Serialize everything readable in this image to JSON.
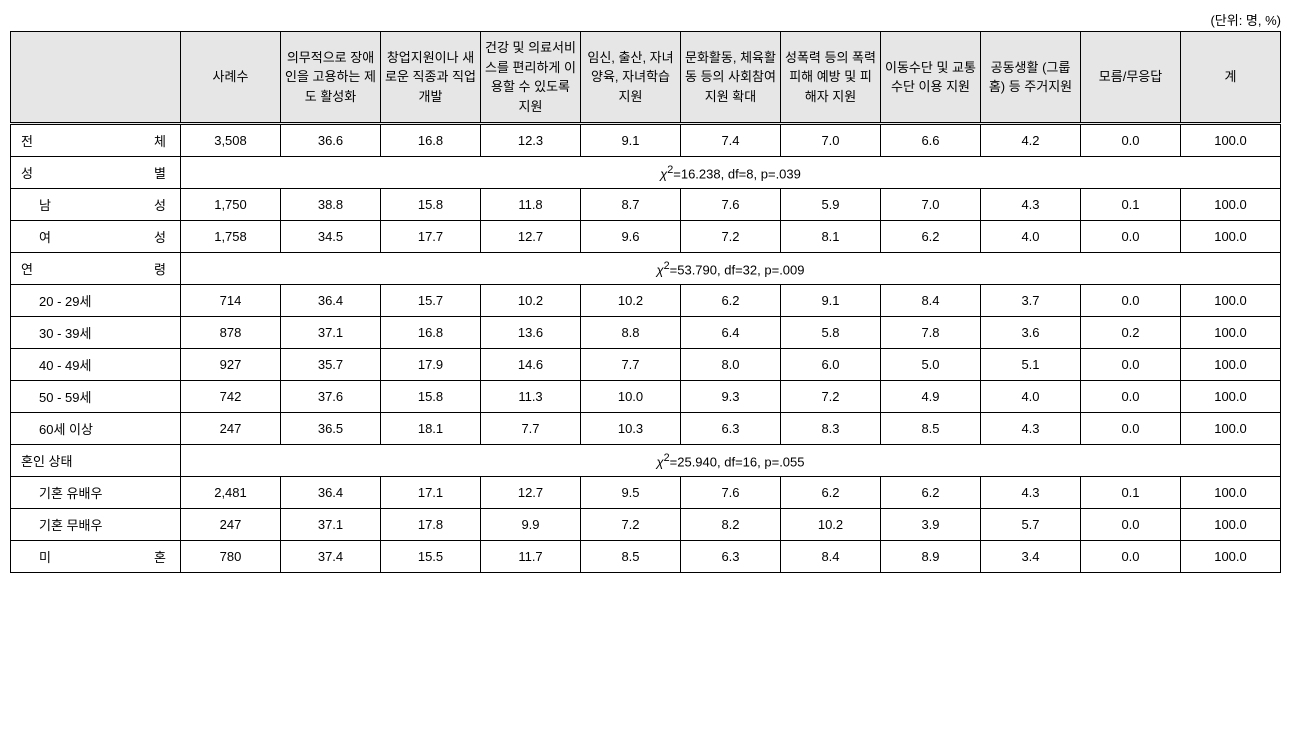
{
  "unit_label": "(단위: 명, %)",
  "headers": {
    "col0": "",
    "col1": "사례수",
    "col2": "의무적으로 장애인을 고용하는 제도 활성화",
    "col3": "창업지원이나 새로운 직종과 직업 개발",
    "col4": "건강 및 의료서비스를 편리하게 이용할 수 있도록 지원",
    "col5": "임신, 출산, 자녀양육, 자녀학습 지원",
    "col6": "문화활동, 체육활동 등의 사회참여 지원 확대",
    "col7": "성폭력 등의 폭력 피해 예방 및 피해자 지원",
    "col8": "이동수단 및 교통수단 이용 지원",
    "col9": "공동생활 (그룹홈) 등 주거지원",
    "col10": "모름/무응답",
    "col11": "계"
  },
  "rows": {
    "total": {
      "label_a": "전",
      "label_b": "체",
      "c1": "3,508",
      "c2": "36.6",
      "c3": "16.8",
      "c4": "12.3",
      "c5": "9.1",
      "c6": "7.4",
      "c7": "7.0",
      "c8": "6.6",
      "c9": "4.2",
      "c10": "0.0",
      "c11": "100.0"
    },
    "gender_header": {
      "label_a": "성",
      "label_b": "별",
      "chi": "16.238",
      "df": "8",
      "p": ".039"
    },
    "male": {
      "label_a": "남",
      "label_b": "성",
      "c1": "1,750",
      "c2": "38.8",
      "c3": "15.8",
      "c4": "11.8",
      "c5": "8.7",
      "c6": "7.6",
      "c7": "5.9",
      "c8": "7.0",
      "c9": "4.3",
      "c10": "0.1",
      "c11": "100.0"
    },
    "female": {
      "label_a": "여",
      "label_b": "성",
      "c1": "1,758",
      "c2": "34.5",
      "c3": "17.7",
      "c4": "12.7",
      "c5": "9.6",
      "c6": "7.2",
      "c7": "8.1",
      "c8": "6.2",
      "c9": "4.0",
      "c10": "0.0",
      "c11": "100.0"
    },
    "age_header": {
      "label_a": "연",
      "label_b": "령",
      "chi": "53.790",
      "df": "32",
      "p": ".009"
    },
    "age20": {
      "label": "20 - 29세",
      "c1": "714",
      "c2": "36.4",
      "c3": "15.7",
      "c4": "10.2",
      "c5": "10.2",
      "c6": "6.2",
      "c7": "9.1",
      "c8": "8.4",
      "c9": "3.7",
      "c10": "0.0",
      "c11": "100.0"
    },
    "age30": {
      "label": "30 - 39세",
      "c1": "878",
      "c2": "37.1",
      "c3": "16.8",
      "c4": "13.6",
      "c5": "8.8",
      "c6": "6.4",
      "c7": "5.8",
      "c8": "7.8",
      "c9": "3.6",
      "c10": "0.2",
      "c11": "100.0"
    },
    "age40": {
      "label": "40 - 49세",
      "c1": "927",
      "c2": "35.7",
      "c3": "17.9",
      "c4": "14.6",
      "c5": "7.7",
      "c6": "8.0",
      "c7": "6.0",
      "c8": "5.0",
      "c9": "5.1",
      "c10": "0.0",
      "c11": "100.0"
    },
    "age50": {
      "label": "50 - 59세",
      "c1": "742",
      "c2": "37.6",
      "c3": "15.8",
      "c4": "11.3",
      "c5": "10.0",
      "c6": "9.3",
      "c7": "7.2",
      "c8": "4.9",
      "c9": "4.0",
      "c10": "0.0",
      "c11": "100.0"
    },
    "age60": {
      "label": "60세 이상",
      "c1": "247",
      "c2": "36.5",
      "c3": "18.1",
      "c4": "7.7",
      "c5": "10.3",
      "c6": "6.3",
      "c7": "8.3",
      "c8": "8.5",
      "c9": "4.3",
      "c10": "0.0",
      "c11": "100.0"
    },
    "marital_header": {
      "label": "혼인 상태",
      "chi": "25.940",
      "df": "16",
      "p": ".055"
    },
    "married_with": {
      "label": "기혼 유배우",
      "c1": "2,481",
      "c2": "36.4",
      "c3": "17.1",
      "c4": "12.7",
      "c5": "9.5",
      "c6": "7.6",
      "c7": "6.2",
      "c8": "6.2",
      "c9": "4.3",
      "c10": "0.1",
      "c11": "100.0"
    },
    "married_without": {
      "label": "기혼 무배우",
      "c1": "247",
      "c2": "37.1",
      "c3": "17.8",
      "c4": "9.9",
      "c5": "7.2",
      "c6": "8.2",
      "c7": "10.2",
      "c8": "3.9",
      "c9": "5.7",
      "c10": "0.0",
      "c11": "100.0"
    },
    "unmarried": {
      "label_a": "미",
      "label_b": "혼",
      "c1": "780",
      "c2": "37.4",
      "c3": "15.5",
      "c4": "11.7",
      "c5": "8.5",
      "c6": "6.3",
      "c7": "8.4",
      "c8": "8.9",
      "c9": "3.4",
      "c10": "0.0",
      "c11": "100.0"
    }
  }
}
